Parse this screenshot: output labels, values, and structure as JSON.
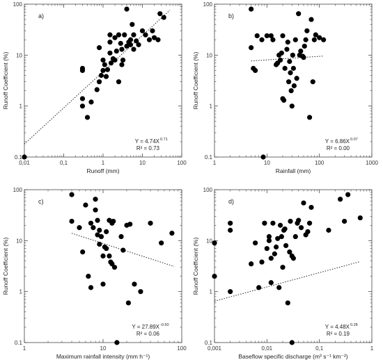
{
  "chart_data": [
    {
      "type": "scatter",
      "panel_label": "a)",
      "xlabel": "Runoff (mm)",
      "ylabel": "Runoff Coefficient (%)",
      "xscale": "log",
      "yscale": "log",
      "xlim": [
        0.01,
        100
      ],
      "ylim": [
        0.1,
        100
      ],
      "x_ticks": [
        "0,01",
        "0,1",
        "1",
        "10",
        "100"
      ],
      "y_ticks": [
        "0.1",
        "1",
        "10",
        "100"
      ],
      "equation_main": "Y = 4.74X",
      "equation_exp": "0.71",
      "r2_text": "R² = 0.73",
      "trend": {
        "a": 4.74,
        "b": 0.71,
        "x_range": [
          0.01,
          50
        ],
        "style": "dotted"
      },
      "points": [
        [
          0.01,
          0.1
        ],
        [
          0.3,
          1.4
        ],
        [
          0.3,
          1.0
        ],
        [
          0.3,
          5.5
        ],
        [
          0.3,
          5.0
        ],
        [
          0.4,
          0.6
        ],
        [
          0.5,
          1.2
        ],
        [
          0.7,
          2.1
        ],
        [
          0.8,
          14
        ],
        [
          0.8,
          3.0
        ],
        [
          0.9,
          4.0
        ],
        [
          1.0,
          5.0
        ],
        [
          1.0,
          8.0
        ],
        [
          1.1,
          6.5
        ],
        [
          1.2,
          3.8
        ],
        [
          1.3,
          5.2
        ],
        [
          1.5,
          18
        ],
        [
          1.5,
          25
        ],
        [
          1.5,
          11
        ],
        [
          1.6,
          7.0
        ],
        [
          1.8,
          8.5
        ],
        [
          2.0,
          8.0
        ],
        [
          2.0,
          22
        ],
        [
          2.2,
          12
        ],
        [
          2.5,
          25
        ],
        [
          2.5,
          3.0
        ],
        [
          2.8,
          17
        ],
        [
          3.0,
          13
        ],
        [
          3.0,
          6.5
        ],
        [
          3.2,
          8.0
        ],
        [
          3.5,
          25
        ],
        [
          4.0,
          15
        ],
        [
          4.0,
          80
        ],
        [
          4.5,
          18
        ],
        [
          5.0,
          16
        ],
        [
          5.0,
          20
        ],
        [
          5.5,
          40
        ],
        [
          6.0,
          25
        ],
        [
          6.0,
          13
        ],
        [
          7.0,
          19
        ],
        [
          8.0,
          16
        ],
        [
          10,
          30
        ],
        [
          12,
          25
        ],
        [
          15,
          20
        ],
        [
          18,
          30
        ],
        [
          20,
          22
        ],
        [
          25,
          20
        ],
        [
          28,
          65
        ],
        [
          35,
          55
        ]
      ]
    },
    {
      "type": "scatter",
      "panel_label": "b)",
      "xlabel": "Rainfall (mm)",
      "ylabel": "Runoff Coefficient (%)",
      "xscale": "log",
      "yscale": "log",
      "xlim": [
        1,
        1000
      ],
      "ylim": [
        0.1,
        100
      ],
      "x_ticks": [
        "1",
        "10",
        "100",
        "1000"
      ],
      "y_ticks": [
        "0.1",
        "1",
        "10",
        "100"
      ],
      "equation_main": "Y = 6.86X",
      "equation_exp": "0.07",
      "r2_text": "R² = 0.00",
      "trend": {
        "a": 6.86,
        "b": 0.07,
        "x_range": [
          5,
          120
        ],
        "style": "dotted"
      },
      "points": [
        [
          5,
          80
        ],
        [
          5,
          14
        ],
        [
          5.5,
          5.5
        ],
        [
          6,
          5.0
        ],
        [
          6.5,
          24
        ],
        [
          8,
          20
        ],
        [
          8.5,
          0.1
        ],
        [
          10,
          24
        ],
        [
          12,
          24
        ],
        [
          13,
          20
        ],
        [
          15,
          6.5
        ],
        [
          16,
          7.0
        ],
        [
          17,
          10
        ],
        [
          18,
          8.0
        ],
        [
          19,
          11
        ],
        [
          20,
          1.4
        ],
        [
          20,
          24
        ],
        [
          21,
          1.3
        ],
        [
          22,
          5.5
        ],
        [
          24,
          13
        ],
        [
          25,
          18
        ],
        [
          26,
          3.0
        ],
        [
          27,
          7.5
        ],
        [
          28,
          4.5
        ],
        [
          29,
          2.0
        ],
        [
          30,
          1.0
        ],
        [
          31,
          10
        ],
        [
          32,
          5.5
        ],
        [
          33,
          2.5
        ],
        [
          35,
          20
        ],
        [
          37,
          3.5
        ],
        [
          40,
          65
        ],
        [
          42,
          10
        ],
        [
          44,
          12
        ],
        [
          48,
          9.5
        ],
        [
          50,
          9.0
        ],
        [
          52,
          15
        ],
        [
          55,
          20
        ],
        [
          58,
          30
        ],
        [
          65,
          0.6
        ],
        [
          70,
          50
        ],
        [
          75,
          3.0
        ],
        [
          80,
          20
        ],
        [
          85,
          25
        ],
        [
          100,
          22
        ],
        [
          120,
          20
        ]
      ]
    },
    {
      "type": "scatter",
      "panel_label": "c)",
      "xlabel": "Maximum rainfall intensity (mm h⁻¹)",
      "ylabel": "Runoff Coefficient (%)",
      "xscale": "log",
      "yscale": "log",
      "xlim": [
        1,
        100
      ],
      "ylim": [
        0.1,
        100
      ],
      "x_ticks": [
        "1",
        "10",
        "100"
      ],
      "y_ticks": [
        "0.1",
        "1",
        "10",
        "100"
      ],
      "equation_main": "Y = 27.89X",
      "equation_exp": "-0.50",
      "r2_text": "R² = 0.06",
      "trend": {
        "a": 27.89,
        "b": -0.5,
        "x_range": [
          4,
          80
        ],
        "style": "dotted"
      },
      "points": [
        [
          4,
          80
        ],
        [
          4,
          24
        ],
        [
          5,
          18
        ],
        [
          5.5,
          6
        ],
        [
          6,
          50
        ],
        [
          6.5,
          2.0
        ],
        [
          7,
          1.2
        ],
        [
          7,
          22
        ],
        [
          7.5,
          18
        ],
        [
          8,
          65
        ],
        [
          8,
          40
        ],
        [
          8.5,
          13
        ],
        [
          8.5,
          25
        ],
        [
          9,
          16
        ],
        [
          9,
          8.5
        ],
        [
          9.5,
          12
        ],
        [
          10,
          1.4
        ],
        [
          10,
          5.0
        ],
        [
          10.5,
          7.5
        ],
        [
          11,
          15
        ],
        [
          11,
          7.0
        ],
        [
          12,
          25
        ],
        [
          12,
          5.0
        ],
        [
          12.5,
          3.8
        ],
        [
          13,
          22
        ],
        [
          13,
          3.5
        ],
        [
          13.5,
          24
        ],
        [
          14,
          3.0
        ],
        [
          15,
          0.1
        ],
        [
          17,
          12
        ],
        [
          18,
          6.5
        ],
        [
          20,
          20
        ],
        [
          21,
          0.6
        ],
        [
          22,
          21
        ],
        [
          25,
          1.4
        ],
        [
          30,
          1.0
        ],
        [
          40,
          22
        ],
        [
          55,
          9.0
        ],
        [
          75,
          14
        ]
      ]
    },
    {
      "type": "scatter",
      "panel_label": "d)",
      "xlabel": "Baseflow specific discharge (m³ s⁻¹ km⁻²)",
      "ylabel": "Runoff Coefficient (%)",
      "xscale": "log",
      "yscale": "log",
      "xlim": [
        0.001,
        1
      ],
      "ylim": [
        0.1,
        100
      ],
      "x_ticks": [
        "0,001",
        "0,01",
        "0,1",
        "1"
      ],
      "y_ticks": [
        "0.1",
        "1",
        "10",
        "100"
      ],
      "equation_main": "Y = 4.48X",
      "equation_exp": "0.28",
      "r2_text": "R² = 0.19",
      "trend": {
        "a": 4.48,
        "b": 0.28,
        "x_range": [
          0.001,
          0.6
        ],
        "style": "dotted"
      },
      "points": [
        [
          0.001,
          2.0
        ],
        [
          0.001,
          9.0
        ],
        [
          0.002,
          1.0
        ],
        [
          0.002,
          22
        ],
        [
          0.002,
          16
        ],
        [
          0.005,
          3.5
        ],
        [
          0.006,
          9.0
        ],
        [
          0.007,
          1.2
        ],
        [
          0.008,
          3.8
        ],
        [
          0.009,
          22
        ],
        [
          0.01,
          7.0
        ],
        [
          0.011,
          12
        ],
        [
          0.011,
          10
        ],
        [
          0.012,
          1.5
        ],
        [
          0.012,
          4.5
        ],
        [
          0.013,
          22
        ],
        [
          0.014,
          5.5
        ],
        [
          0.015,
          7.5
        ],
        [
          0.016,
          11
        ],
        [
          0.017,
          1.2
        ],
        [
          0.018,
          20
        ],
        [
          0.019,
          12
        ],
        [
          0.02,
          3.0
        ],
        [
          0.021,
          16
        ],
        [
          0.022,
          17
        ],
        [
          0.023,
          8.0
        ],
        [
          0.025,
          0.6
        ],
        [
          0.027,
          6.0
        ],
        [
          0.028,
          24
        ],
        [
          0.03,
          5.0
        ],
        [
          0.03,
          0.1
        ],
        [
          0.032,
          4.5
        ],
        [
          0.035,
          12
        ],
        [
          0.038,
          22
        ],
        [
          0.04,
          25
        ],
        [
          0.045,
          18
        ],
        [
          0.05,
          55
        ],
        [
          0.055,
          13
        ],
        [
          0.06,
          15
        ],
        [
          0.065,
          22
        ],
        [
          0.07,
          45
        ],
        [
          0.15,
          16
        ],
        [
          0.25,
          65
        ],
        [
          0.3,
          24
        ],
        [
          0.35,
          80
        ],
        [
          0.6,
          28
        ]
      ]
    }
  ]
}
